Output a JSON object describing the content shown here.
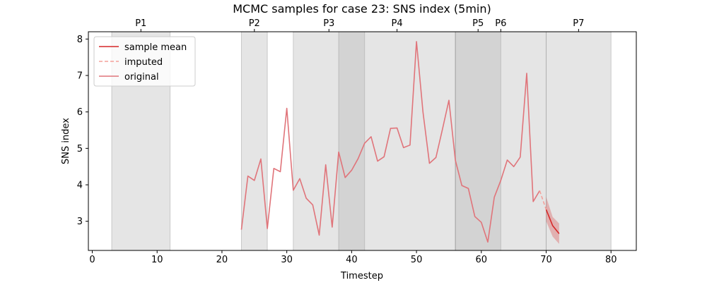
{
  "chart_data": {
    "type": "line",
    "title": "MCMC samples for case 23: SNS index (5min)",
    "xlabel": "Timestep",
    "ylabel": "SNS index",
    "xlim": [
      -0.6,
      83.9
    ],
    "ylim": [
      2.2,
      8.2
    ],
    "x_ticks": [
      "0",
      "10",
      "20",
      "30",
      "40",
      "50",
      "60",
      "70",
      "80"
    ],
    "y_ticks": [
      "3",
      "4",
      "5",
      "6",
      "7",
      "8"
    ],
    "grid": false,
    "legend_position": "top-left",
    "legend": [
      {
        "label": "sample mean",
        "style": "solid",
        "color": "#d62728"
      },
      {
        "label": "imputed",
        "style": "dashed",
        "color": "#f4a09a"
      },
      {
        "label": "original",
        "style": "solid",
        "color": "#e0747a"
      }
    ],
    "periods": [
      {
        "label": "P1",
        "start": 3,
        "end": 12
      },
      {
        "label": "P2",
        "start": 23,
        "end": 27
      },
      {
        "label": "P3",
        "start": 31,
        "end": 42
      },
      {
        "label": "P4",
        "start": 38,
        "end": 56
      },
      {
        "label": "P5",
        "start": 56,
        "end": 63
      },
      {
        "label": "P6",
        "start": 56,
        "end": 70
      },
      {
        "label": "P7",
        "start": 70,
        "end": 80
      }
    ],
    "series": [
      {
        "name": "original",
        "color": "#e0747a",
        "x": [
          23,
          24,
          25,
          26,
          27,
          28,
          29,
          30,
          31,
          32,
          33,
          34,
          35,
          36,
          37,
          38,
          39,
          40,
          41,
          42,
          43,
          44,
          45,
          46,
          47,
          48,
          49,
          50,
          51,
          52,
          53,
          54,
          55,
          56,
          57,
          58,
          59,
          60,
          61,
          62,
          63,
          64,
          65,
          66,
          67,
          68,
          69
        ],
        "y": [
          2.77,
          4.24,
          4.12,
          4.71,
          2.8,
          4.45,
          4.36,
          6.1,
          3.85,
          4.17,
          3.63,
          3.45,
          2.62,
          4.55,
          2.84,
          4.9,
          4.2,
          4.4,
          4.72,
          5.14,
          5.32,
          4.65,
          4.77,
          5.55,
          5.56,
          5.02,
          5.09,
          7.93,
          6.0,
          4.59,
          4.75,
          5.52,
          6.32,
          4.67,
          3.98,
          3.9,
          3.13,
          2.97,
          2.43,
          3.66,
          4.12,
          4.68,
          4.5,
          4.76,
          7.06,
          3.54,
          3.84
        ]
      },
      {
        "name": "imputed",
        "color": "#f4a09a",
        "x": [
          69,
          70
        ],
        "y": [
          3.84,
          3.32
        ]
      },
      {
        "name": "sample mean",
        "color": "#d62728",
        "x": [
          70,
          71,
          72
        ],
        "y": [
          3.32,
          2.88,
          2.66
        ]
      }
    ],
    "uncertainty_band": {
      "x": [
        70,
        71,
        72
      ],
      "lower": [
        3.0,
        2.58,
        2.38
      ],
      "upper": [
        3.67,
        3.12,
        2.94
      ]
    }
  }
}
